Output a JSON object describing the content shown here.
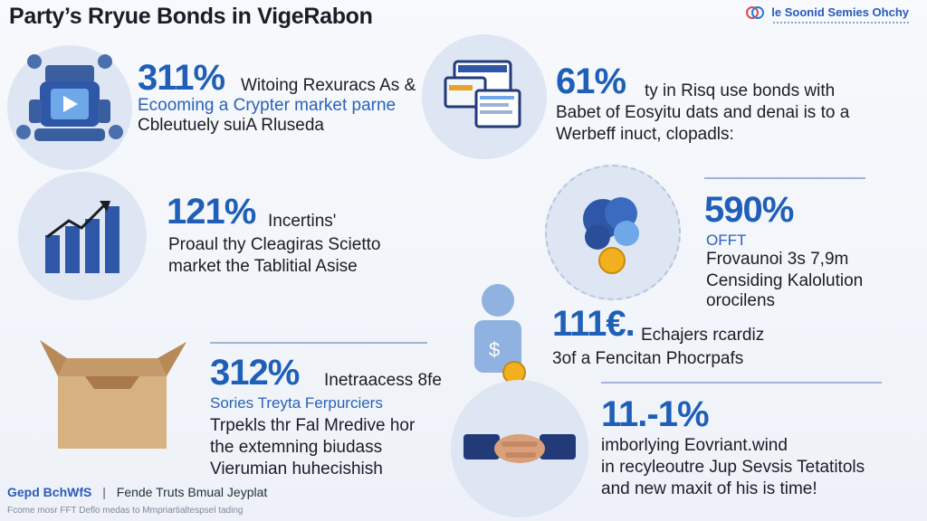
{
  "title": "Party’s Rryue Bonds in VigeRabon",
  "brand": {
    "name": "le Soonid Semies Ohchy"
  },
  "panels": [
    {
      "id": "p1",
      "number": "311%",
      "lines": [
        "Witoing Rexuracs As &",
        "Ecooming a Crypter market parne",
        "Cbleutuely suiA Rluseda"
      ],
      "icon": "robot-video-icon"
    },
    {
      "id": "p2",
      "number": "61%",
      "lines": [
        "ty in Risq use bonds with",
        "Babet of Eosyitu dats and denai is to a",
        "Werbeff inuct, clopadls:"
      ],
      "icon": "documents-screen-icon"
    },
    {
      "id": "p3",
      "number": "121%",
      "lines": [
        "Incertins'",
        "Proaul thy Cleagiras Scietto",
        "market the Tablitial Asise"
      ],
      "icon": "growth-chart-icon"
    },
    {
      "id": "p4",
      "number": "590%",
      "lines": [
        "OFFT",
        "Frovaunoi 3s 7,9m",
        "Censiding Kalolution",
        "orocilens"
      ],
      "icon": "brain-coin-icon"
    },
    {
      "id": "p5",
      "number": "111€.",
      "lines": [
        "Echajers rcardiz",
        "3of a Fencitan Phocrpafs"
      ],
      "icon": "person-coin-icon"
    },
    {
      "id": "p6",
      "number": "312%",
      "lines": [
        "Inetraacess 8fe",
        "Sories Treyta Ferpurciers",
        "Trpekls thr Fal Mredive hor",
        "the extemning biudass",
        "Vierumian huhecishish"
      ],
      "icon": "open-box-icon"
    },
    {
      "id": "p7",
      "number": "11.-1%",
      "lines": [
        "imborlying Eovriant.wind",
        "in recyleoutre Jup Sevsis Tetatitols",
        "and new maxit of his is time!"
      ],
      "icon": "handshake-icon"
    }
  ],
  "footer": {
    "brand": "Gepd BchWfS",
    "separator": "|",
    "tagline": "Fende Truts Bmual Jeyplat",
    "note": "Fcome mosr FFT Deflo medas to Mmpriartialtespsel tading"
  },
  "colors": {
    "accent": "#1f5fb8",
    "circle": "#dde6f2",
    "ink": "#1a1d26"
  }
}
